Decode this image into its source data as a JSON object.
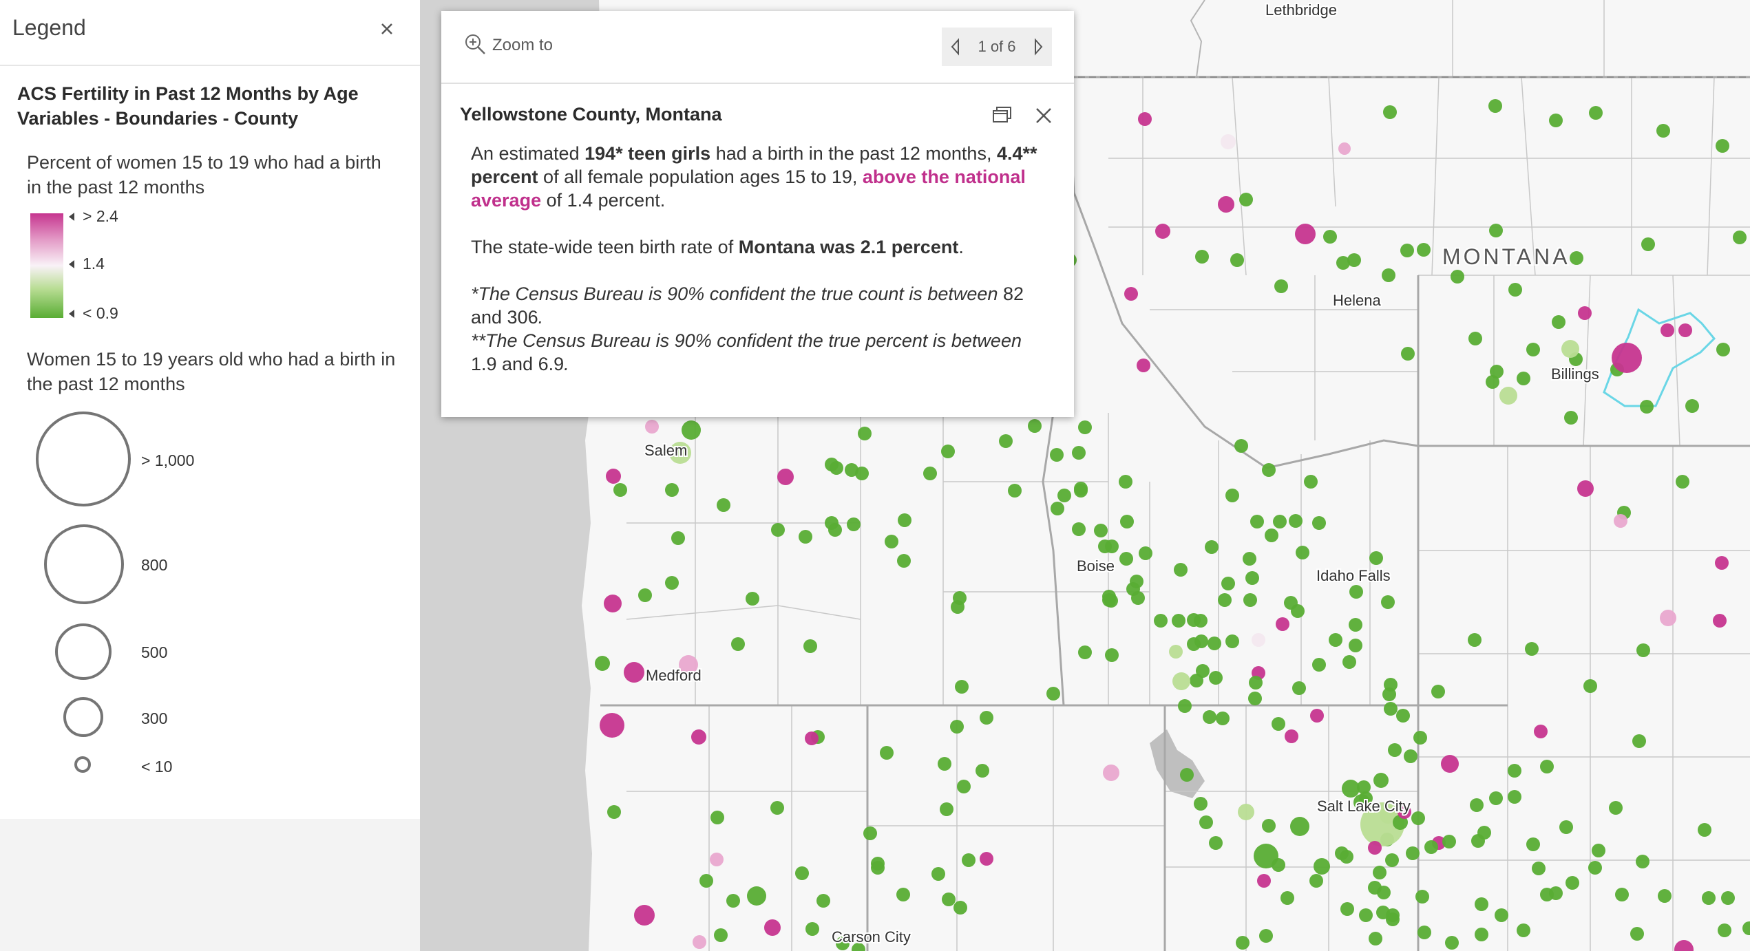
{
  "legend": {
    "title": "Legend",
    "layer_title": "ACS Fertility in Past 12 Months by Age Variables - Boundaries - County",
    "color_label": "Percent of women 15 to 19 who had a birth in the past 12 months",
    "color_stops": [
      "> 2.4",
      "1.4",
      "< 0.9"
    ],
    "size_label": "Women 15 to 19 years old who had a birth in the past 12 months",
    "size_stops": [
      "> 1,000",
      "800",
      "500",
      "300",
      "< 10"
    ]
  },
  "popup": {
    "zoom_label": "Zoom to",
    "pager": "1 of 6",
    "title": "Yellowstone County, Montana",
    "p1_a": "An estimated ",
    "p1_b": "194* teen girls",
    "p1_c": " had a birth in the past 12 months, ",
    "p1_d": "4.4** percent",
    "p1_e": " of all female population ages 15 to 19, ",
    "p1_link": "above the national average",
    "p1_f": " of 1.4 percent.",
    "p2_a": "The state-wide teen birth rate of ",
    "p2_b": "Montana was 2.1 percent",
    "p2_c": ".",
    "note1_a": "*The Census Bureau is 90% confident the true count is between ",
    "note1_b": "82 and 306",
    "note1_c": ".",
    "note2_a": "**The Census Bureau is 90% confident the true percent is between ",
    "note2_b": "1.9 and 6.9",
    "note2_c": "."
  },
  "map": {
    "cities": [
      "Lethbridge",
      "Helena",
      "Billings",
      "Salem",
      "Boise",
      "Idaho Falls",
      "Medford",
      "Salt Lake City",
      "Carson City"
    ],
    "state_labels": [
      "MONTANA"
    ],
    "colors": {
      "high": "#c6358f",
      "light_high": "#e9a8cf",
      "neutral": "#f3e8ef",
      "low": "#59ad34",
      "light_low": "#b9dd94",
      "highlight": "#6ad6e6"
    }
  }
}
